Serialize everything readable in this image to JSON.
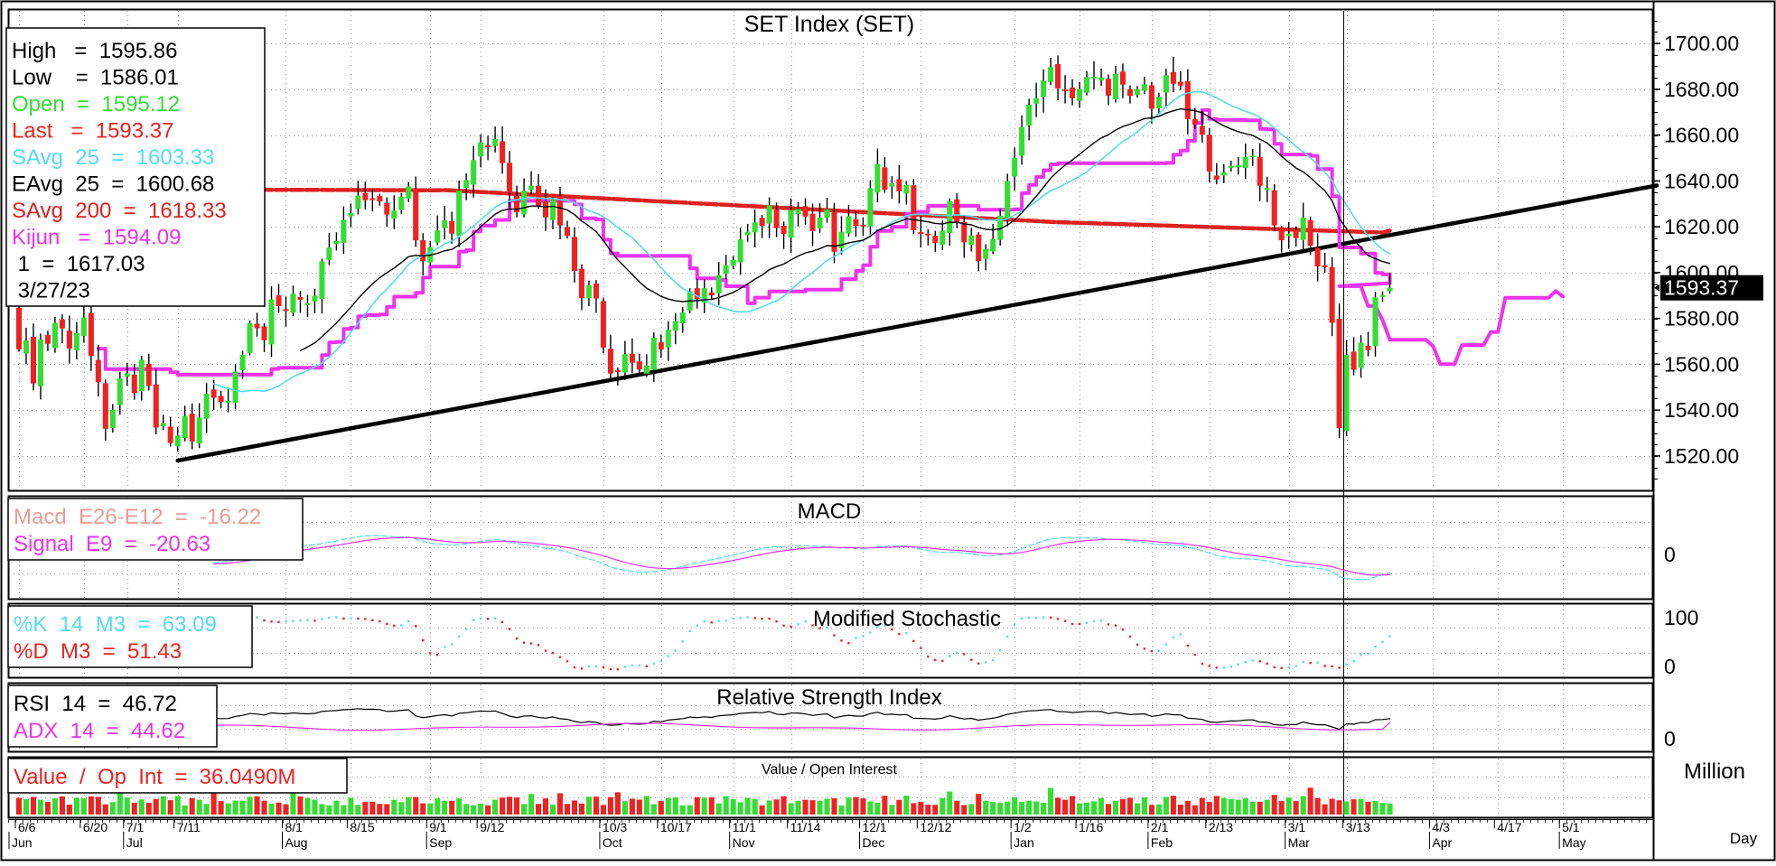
{
  "chart_data": {
    "type": "candlestick",
    "title": "SET Index (SET)",
    "last_date": "3/27/23",
    "y_axis": {
      "ylim": [
        1505,
        1715
      ],
      "ticks": [
        "1700.00",
        "1680.00",
        "1660.00",
        "1640.00",
        "1620.00",
        "1600.00",
        "1580.00",
        "1560.00",
        "1540.00",
        "1520.00"
      ],
      "tick_values": [
        1700,
        1680,
        1660,
        1640,
        1620,
        1600,
        1580,
        1560,
        1540,
        1520
      ],
      "last_value_label": "1593.37",
      "last_value": 1593.37,
      "grid": true
    },
    "x_axis": {
      "unit_label": "Day",
      "date_labels": [
        "6/6",
        "6/20",
        "7/1",
        "7/11",
        "8/1",
        "8/15",
        "9/1",
        "9/12",
        "10/3",
        "10/17",
        "11/1",
        "11/14",
        "12/1",
        "12/12",
        "1/2",
        "1/16",
        "2/1",
        "2/13",
        "3/1",
        "3/13",
        "4/3",
        "4/17",
        "5/1"
      ],
      "date_label_bars": [
        1,
        10,
        16,
        23,
        38,
        47,
        58,
        65,
        82,
        90,
        100,
        108,
        118,
        126,
        139,
        148,
        158,
        166,
        177,
        185,
        197,
        206,
        215
      ],
      "month_labels": [
        "Jun",
        "Jul",
        "Aug",
        "Sep",
        "Oct",
        "Nov",
        "Dec",
        "Jan",
        "Feb",
        "Mar",
        "Apr",
        "May"
      ],
      "month_label_bars": [
        -4,
        16,
        38,
        58,
        82,
        100,
        118,
        139,
        158,
        177,
        197,
        215
      ],
      "total_bars": 228,
      "last_bar_index": 184
    },
    "legend_main": [
      {
        "label": "High   =  1595.86",
        "color": "#000000"
      },
      {
        "label": "Low    =  1586.01",
        "color": "#000000"
      },
      {
        "label": "Open  =  1595.12",
        "color": "#33dd33"
      },
      {
        "label": "Last   =  1593.37",
        "color": "#ee2222"
      },
      {
        "label": "SAvg  25  =  1603.33",
        "color": "#55ddee"
      },
      {
        "label": "EAvg  25  =  1600.68",
        "color": "#000000"
      },
      {
        "label": "SAvg  200  =  1618.33",
        "color": "#dd2222"
      },
      {
        "label": "Kijun   =  1594.09",
        "color": "#ee33ee"
      },
      {
        "label": " 1  =  1617.03",
        "color": "#000000"
      },
      {
        "label": " 3/27/23",
        "color": "#000000"
      }
    ],
    "price_series": [
      1582.9,
      1566.5,
      1570.4,
      1551.6,
      1570.8,
      1568.9,
      1578.1,
      1575.7,
      1566.9,
      1573.6,
      1580.4,
      1563.7,
      1552.3,
      1531.9,
      1540.2,
      1553.8,
      1556.0,
      1547.5,
      1562.0,
      1550.6,
      1532.4,
      1534.2,
      1525.7,
      1528.9,
      1537.5,
      1526.3,
      1536.7,
      1547.1,
      1545.4,
      1543.6,
      1544.1,
      1556.8,
      1564.1,
      1577.9,
      1575.8,
      1570.5,
      1588.3,
      1585.4,
      1583.3,
      1590.8,
      1588.2,
      1586.6,
      1589.9,
      1604.9,
      1610.9,
      1613.8,
      1623.0,
      1626.0,
      1633.6,
      1631.6,
      1632.0,
      1631.0,
      1625.3,
      1627.1,
      1633.2,
      1637.6,
      1614.1,
      1605.1,
      1611.1,
      1618.4,
      1622.8,
      1617.0,
      1635.8,
      1640.4,
      1649.1,
      1656.9,
      1655.4,
      1658.3,
      1647.8,
      1634.8,
      1626.3,
      1635.7,
      1637.9,
      1629.2,
      1624.1,
      1631.8,
      1620.6,
      1616.1,
      1600.7,
      1588.9,
      1594.5,
      1588.7,
      1567.3,
      1556.0,
      1557.4,
      1564.4,
      1560.7,
      1557.7,
      1559.5,
      1571.5,
      1566.5,
      1575.0,
      1578.8,
      1582.7,
      1591.8,
      1588.5,
      1593.2,
      1590.0,
      1598.9,
      1603.2,
      1605.6,
      1614.4,
      1617.8,
      1621.9,
      1620.4,
      1629.4,
      1619.4,
      1616.8,
      1627.3,
      1627.7,
      1624.5,
      1618.2,
      1624.0,
      1627.6,
      1609.1,
      1617.8,
      1624.6,
      1620.4,
      1620.7,
      1636.8,
      1647.4,
      1636.2,
      1639.0,
      1635.4,
      1638.3,
      1618.5,
      1617.1,
      1616.3,
      1613.0,
      1618.3,
      1631.2,
      1621.6,
      1613.2,
      1616.2,
      1605.0,
      1610.4,
      1614.7,
      1624.8,
      1640.0,
      1650.1,
      1663.5,
      1673.3,
      1676.1,
      1683.8,
      1689.6,
      1680.4,
      1679.3,
      1676.1,
      1680.2,
      1685.3,
      1685.5,
      1685.1,
      1677.2,
      1686.7,
      1682.0,
      1677.1,
      1680.0,
      1682.1,
      1671.5,
      1676.7,
      1686.1,
      1682.4,
      1681.6,
      1667.0,
      1664.6,
      1660.2,
      1644.1,
      1640.6,
      1643.8,
      1646.6,
      1646.8,
      1650.5,
      1651.1,
      1637.9,
      1636.9,
      1620.6,
      1614.1,
      1617.0,
      1615.1,
      1624.0,
      1611.7,
      1602.7,
      1602.8,
      1578.1,
      1532.1,
      1564.0,
      1557.6,
      1569.4,
      1566.2,
      1589.2,
      1590.2,
      1593.4
    ],
    "overlays": [
      {
        "name": "SAvg 25",
        "color": "#55ddee",
        "last": 1603.33
      },
      {
        "name": "EAvg 25",
        "color": "#000000",
        "last": 1600.68
      },
      {
        "name": "SAvg 200",
        "color": "#dd2222",
        "last": 1618.33
      },
      {
        "name": "Kijun",
        "color": "#ee33ee",
        "last": 1594.09,
        "projection": [
          1594.09,
          1594.1,
          1594.1,
          1594.1,
          1585.4,
          1585.4,
          1579.3,
          1570.7,
          1570.7,
          1570.7,
          1570.7,
          1570.7,
          1570.7,
          1567.9,
          1560.1,
          1560.1,
          1560.1,
          1568.4,
          1568.4,
          1568.4,
          1568.4,
          1574.1,
          1574.1,
          1589.0,
          1589.0,
          1589.0,
          1589.0,
          1589.0,
          1589.0,
          1589.0,
          1592.0,
          1589.5
        ]
      },
      {
        "name": "Trendline",
        "color": "#000000",
        "points": [
          [
            23,
            1518
          ],
          [
            228,
            1638
          ]
        ]
      }
    ],
    "panels": [
      {
        "name": "MACD",
        "title": "MACD",
        "ticks": [
          "0"
        ],
        "legend": [
          {
            "label": "Macd  E26-E12  =  -16.22",
            "color": "#eb9c94"
          },
          {
            "label": "Signal  E9  =  -20.63",
            "color": "#ee33ee"
          }
        ],
        "series": [
          {
            "name": "Macd E26-E12",
            "last": -16.22
          },
          {
            "name": "Signal E9",
            "last": -20.63
          }
        ]
      },
      {
        "name": "Modified Stochastic",
        "title": "Modified  Stochastic",
        "ticks": [
          "100",
          "0"
        ],
        "legend": [
          {
            "label": "%K  14  M3  =  63.09",
            "color": "#55ddee"
          },
          {
            "label": "%D  M3  =  51.43",
            "color": "#ee2222"
          }
        ],
        "series": [
          {
            "name": "%K 14 M3",
            "last": 63.09
          },
          {
            "name": "%D M3",
            "last": 51.43
          }
        ]
      },
      {
        "name": "Relative Strength Index",
        "title": "Relative  Strength  Index",
        "ticks": [
          "0"
        ],
        "legend": [
          {
            "label": "RSI  14  =  46.72",
            "color": "#000000"
          },
          {
            "label": "ADX  14  =  44.62",
            "color": "#ee33ee"
          }
        ],
        "series": [
          {
            "name": "RSI 14",
            "last": 46.72
          },
          {
            "name": "ADX 14",
            "last": 44.62
          }
        ]
      },
      {
        "name": "Value / Open Interest",
        "title": "Value  /  Open Interest",
        "unit": "Million",
        "legend": [
          {
            "label": "Value  /  Op  Int  =  36.0490M",
            "color": "#ee2222"
          }
        ],
        "series": [
          {
            "name": "Value",
            "last": 36.049
          }
        ]
      }
    ]
  }
}
